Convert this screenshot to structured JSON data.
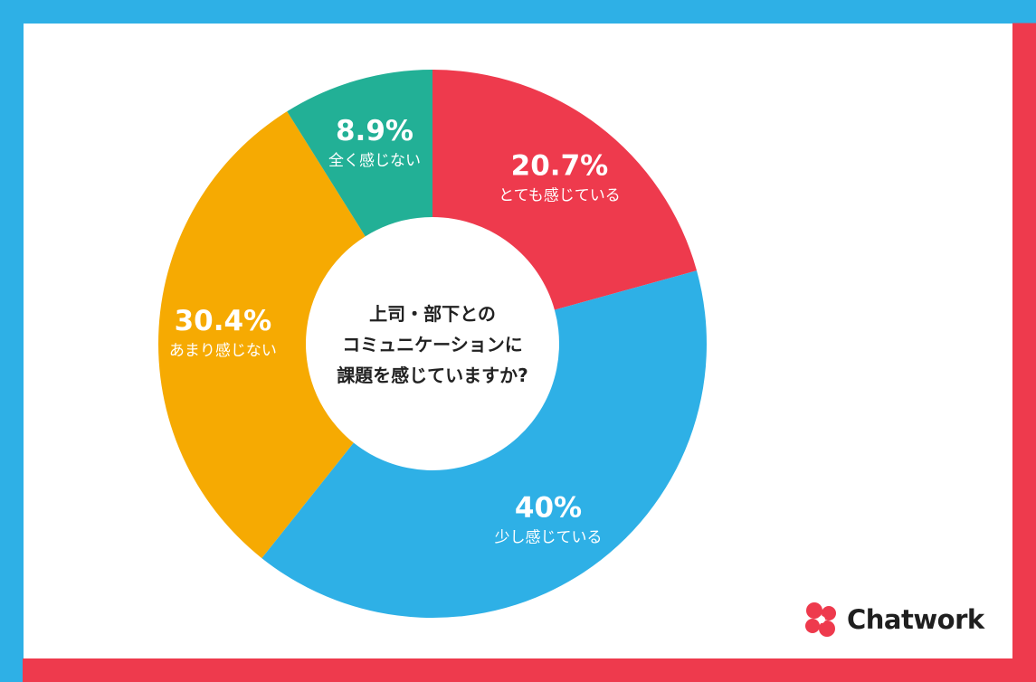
{
  "chart_data": {
    "type": "pie",
    "donut": true,
    "title": "上司・部下とのコミュニケーションに課題を感じていますか?",
    "center_text": [
      "上司・部下との",
      "コミュニケーションに",
      "課題を感じていますか?"
    ],
    "slices": [
      {
        "label": "とても感じている",
        "value": 20.7,
        "value_label": "20.7%",
        "color": "#ee3a4d"
      },
      {
        "label": "少し感じている",
        "value": 40,
        "value_label": "40%",
        "color": "#2eb0e6"
      },
      {
        "label": "あまり感じない",
        "value": 30.4,
        "value_label": "30.4%",
        "color": "#f6aa02"
      },
      {
        "label": "全く感じない",
        "value": 8.9,
        "value_label": "8.9%",
        "color": "#22b096"
      }
    ]
  },
  "frame": {
    "blue": "#2eb0e6",
    "red": "#ee3a4d"
  },
  "brand": {
    "name": "Chatwork",
    "logo_colors": [
      "#ee3a4d",
      "#ee3a4d",
      "#ee3a4d",
      "#ee3a4d"
    ]
  }
}
